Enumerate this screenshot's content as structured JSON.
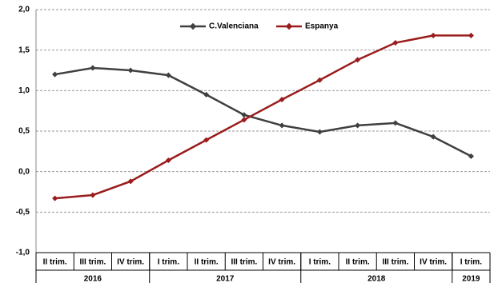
{
  "chart_data": {
    "type": "line",
    "categories": [
      "II trim.",
      "III trim.",
      "IV trim.",
      "I trim.",
      "II trim.",
      "III trim.",
      "IV trim.",
      "I trim.",
      "II trim.",
      "III trim.",
      "IV trim.",
      "I trim."
    ],
    "groups": [
      {
        "label": "2016",
        "span": 3
      },
      {
        "label": "2017",
        "span": 4
      },
      {
        "label": "2018",
        "span": 4
      },
      {
        "label": "2019",
        "span": 1
      }
    ],
    "series": [
      {
        "name": "C.Valenciana",
        "color": "#404040",
        "values": [
          1.2,
          1.28,
          1.25,
          1.19,
          0.95,
          0.7,
          0.57,
          0.49,
          0.57,
          0.6,
          0.43,
          0.19
        ]
      },
      {
        "name": "Espanya",
        "color": "#9b1c1c",
        "values": [
          -0.33,
          -0.29,
          -0.12,
          0.14,
          0.39,
          0.64,
          0.89,
          1.13,
          1.38,
          1.59,
          1.68,
          1.68
        ]
      }
    ],
    "ylim": [
      -1.0,
      2.0
    ],
    "yticks": [
      {
        "value": -1.0,
        "label": "-1,0"
      },
      {
        "value": -0.5,
        "label": "-0,5"
      },
      {
        "value": 0.0,
        "label": "0,0"
      },
      {
        "value": 0.5,
        "label": "0,5"
      },
      {
        "value": 1.0,
        "label": "1,0"
      },
      {
        "value": 1.5,
        "label": "1,5"
      },
      {
        "value": 2.0,
        "label": "2,0"
      }
    ],
    "grid": true,
    "legend": "top"
  }
}
